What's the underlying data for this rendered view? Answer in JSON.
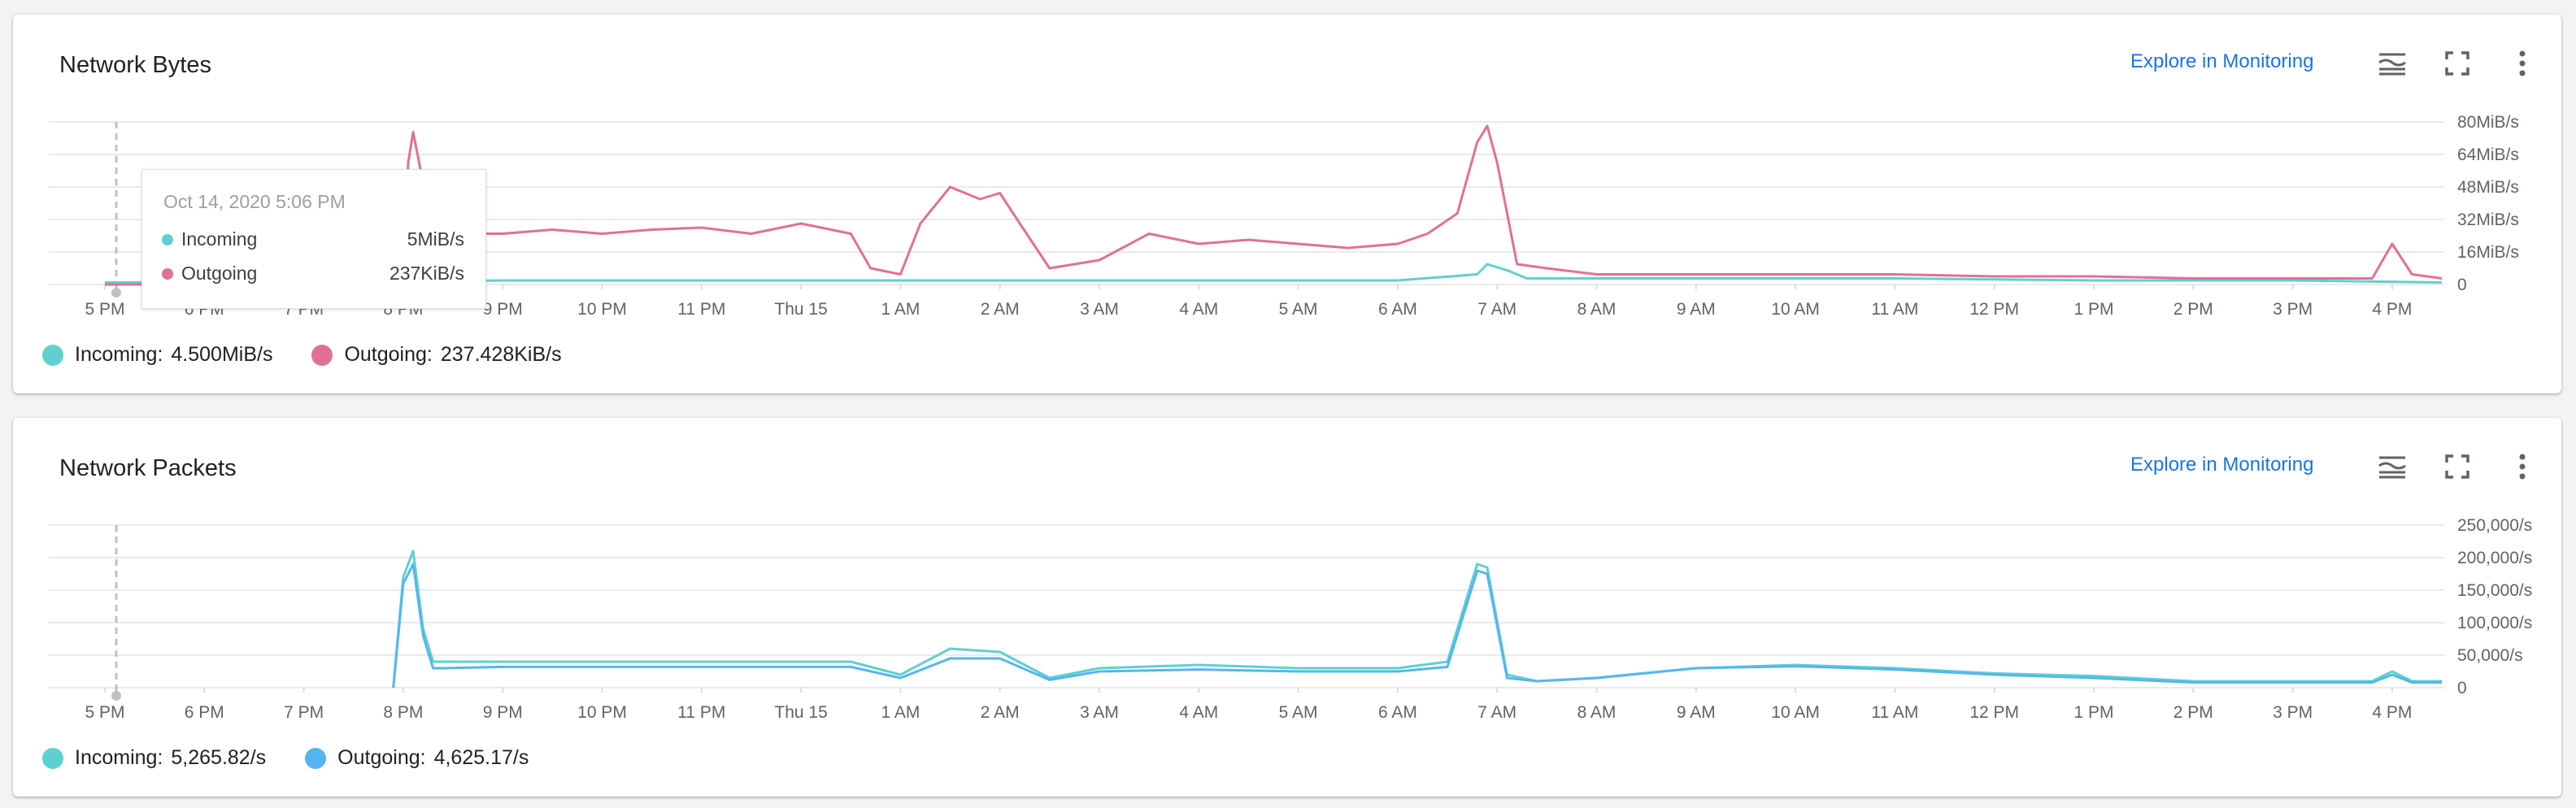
{
  "colors": {
    "incoming": "#5fd0cf",
    "outgoing": "#e07194",
    "outgoing_packets": "#55b6ef",
    "link": "#1a73e8"
  },
  "x_ticks": [
    "5 PM",
    "6 PM",
    "7 PM",
    "8 PM",
    "9 PM",
    "10 PM",
    "11 PM",
    "Thu 15",
    "1 AM",
    "2 AM",
    "3 AM",
    "4 AM",
    "5 AM",
    "6 AM",
    "7 AM",
    "8 AM",
    "9 AM",
    "10 AM",
    "11 AM",
    "12 PM",
    "1 PM",
    "2 PM",
    "3 PM",
    "4 PM"
  ],
  "icons": [
    "legend-toggle-icon",
    "fullscreen-icon",
    "more-vert-icon"
  ],
  "bytes": {
    "title": "Network Bytes",
    "explore_label": "Explore in Monitoring",
    "y_ticks": [
      "0",
      "16MiB/s",
      "32MiB/s",
      "48MiB/s",
      "64MiB/s",
      "80MiB/s"
    ],
    "legend": [
      {
        "name": "Incoming:",
        "value": "4.500MiB/s"
      },
      {
        "name": "Outgoing:",
        "value": "237.428KiB/s"
      }
    ],
    "tooltip": {
      "title": "Oct 14, 2020 5:06 PM",
      "rows": [
        {
          "name": "Incoming",
          "value": "5MiB/s"
        },
        {
          "name": "Outgoing",
          "value": "237KiB/s"
        }
      ]
    }
  },
  "packets": {
    "title": "Network Packets",
    "explore_label": "Explore in Monitoring",
    "y_ticks": [
      "0",
      "50,000/s",
      "100,000/s",
      "150,000/s",
      "200,000/s",
      "250,000/s"
    ],
    "legend": [
      {
        "name": "Incoming:",
        "value": "5,265.82/s"
      },
      {
        "name": "Outgoing:",
        "value": "4,625.17/s"
      }
    ]
  },
  "chart_data": [
    {
      "type": "line",
      "title": "Network Bytes",
      "x_unit": "hours since 5 PM",
      "ylim_label": "MiB/s",
      "ylim": [
        0,
        80
      ],
      "series": [
        {
          "name": "Incoming",
          "x": [
            0,
            1,
            2,
            3,
            3.2,
            4,
            6,
            8,
            10,
            12,
            13,
            13.8,
            13.9,
            14.1,
            14.3,
            16,
            18,
            20,
            22,
            23.5
          ],
          "values": [
            1,
            1,
            1,
            1,
            1.5,
            2,
            2,
            2,
            2,
            2,
            2,
            5,
            10,
            7,
            3,
            3,
            3,
            2,
            2,
            1
          ]
        },
        {
          "name": "Outgoing",
          "x": [
            0,
            1,
            2,
            3,
            3.05,
            3.1,
            3.2,
            3.3,
            3.5,
            4,
            4.5,
            5,
            5.5,
            6,
            6.5,
            7,
            7.2,
            7.5,
            7.7,
            8,
            8.2,
            8.5,
            8.8,
            9,
            9.2,
            9.5,
            10,
            10.5,
            11,
            11.5,
            12,
            12.5,
            13,
            13.3,
            13.6,
            13.8,
            13.9,
            14.0,
            14.2,
            14.5,
            15,
            16,
            17,
            18,
            19,
            20,
            21,
            22,
            22.8,
            23,
            23.2,
            23.5
          ],
          "values": [
            0,
            0,
            0,
            0,
            60,
            75,
            50,
            30,
            25,
            25,
            27,
            25,
            27,
            28,
            25,
            30,
            28,
            25,
            8,
            5,
            30,
            48,
            42,
            45,
            30,
            8,
            12,
            25,
            20,
            22,
            20,
            18,
            20,
            25,
            35,
            70,
            78,
            60,
            10,
            8,
            5,
            5,
            5,
            5,
            4,
            4,
            3,
            3,
            3,
            20,
            5,
            3
          ]
        }
      ]
    },
    {
      "type": "line",
      "title": "Network Packets",
      "x_unit": "hours since 5 PM",
      "ylim": [
        0,
        250000
      ],
      "series": [
        {
          "name": "Incoming",
          "x": [
            2.9,
            3.0,
            3.1,
            3.2,
            3.3,
            3.4,
            4,
            5,
            6,
            7,
            7.5,
            8,
            8.5,
            9,
            9.5,
            10,
            11,
            12,
            12.5,
            13,
            13.5,
            13.8,
            13.9,
            14.1,
            14.4,
            15,
            16,
            17,
            18,
            19,
            20,
            21,
            22,
            22.8,
            23,
            23.2,
            23.5
          ],
          "values": [
            0,
            170000,
            210000,
            90000,
            40000,
            40000,
            40000,
            40000,
            40000,
            40000,
            40000,
            20000,
            60000,
            55000,
            15000,
            30000,
            35000,
            30000,
            30000,
            30000,
            40000,
            190000,
            185000,
            20000,
            10000,
            15000,
            30000,
            35000,
            30000,
            22000,
            18000,
            10000,
            10000,
            10000,
            25000,
            10000,
            10000
          ]
        },
        {
          "name": "Outgoing",
          "x": [
            2.9,
            3.0,
            3.1,
            3.2,
            3.3,
            3.4,
            4,
            5,
            6,
            7,
            7.5,
            8,
            8.5,
            9,
            9.5,
            10,
            11,
            12,
            12.5,
            13,
            13.5,
            13.8,
            13.9,
            14.1,
            14.4,
            15,
            16,
            17,
            18,
            19,
            20,
            21,
            22,
            22.8,
            23,
            23.2,
            23.5
          ],
          "values": [
            0,
            160000,
            190000,
            80000,
            30000,
            30000,
            32000,
            32000,
            32000,
            32000,
            32000,
            15000,
            45000,
            45000,
            12000,
            25000,
            28000,
            25000,
            25000,
            25000,
            32000,
            180000,
            175000,
            15000,
            10000,
            15000,
            30000,
            33000,
            28000,
            20000,
            15000,
            8000,
            8000,
            8000,
            20000,
            8000,
            8000
          ]
        }
      ]
    }
  ]
}
